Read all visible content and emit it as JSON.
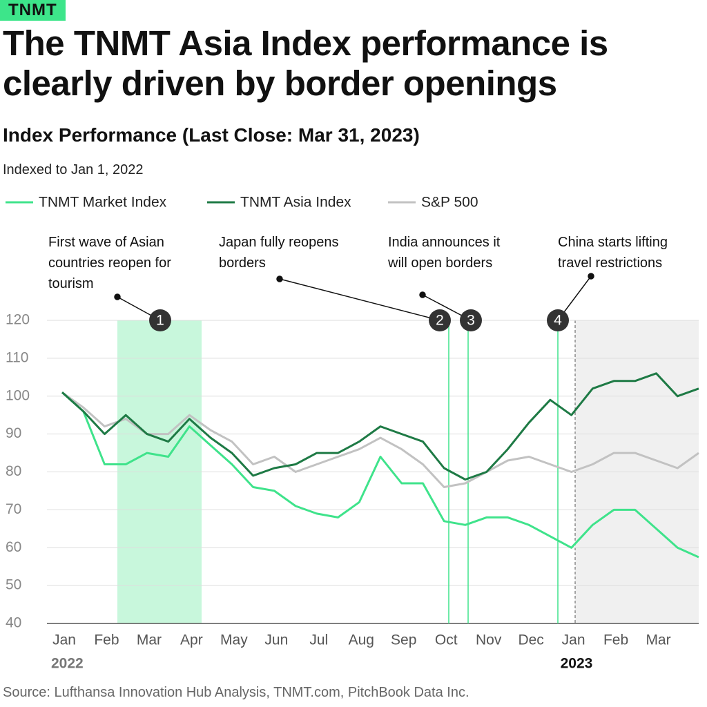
{
  "brand": "TNMT",
  "chart_data": {
    "type": "line",
    "title": "The TNMT Asia Index performance is clearly driven by border openings",
    "subtitle": "Index Performance (Last Close: Mar 31, 2023)",
    "y_label": "Indexed to Jan 1, 2022",
    "categories": [
      "Jan",
      null,
      "Feb",
      null,
      "Mar",
      null,
      "Apr",
      null,
      "May",
      null,
      "Jun",
      null,
      "Jul",
      null,
      "Aug",
      null,
      "Sep",
      null,
      "Oct",
      null,
      "Nov",
      null,
      "Dec",
      null,
      "Jan",
      null,
      "Feb",
      null,
      "Mar",
      null,
      null
    ],
    "year_labels": [
      "2022",
      "2023"
    ],
    "series": [
      {
        "name": "TNMT Market Index",
        "color": "#3fe38b",
        "values": [
          101,
          96,
          82,
          82,
          85,
          84,
          92,
          87,
          82,
          76,
          75,
          71,
          69,
          68,
          72,
          84,
          77,
          77,
          67,
          66,
          68,
          68,
          66,
          63,
          60,
          66,
          70,
          70,
          65,
          60,
          57.5
        ]
      },
      {
        "name": "TNMT Asia Index",
        "color": "#1e7a45",
        "values": [
          101,
          96,
          90,
          95,
          90,
          88,
          94,
          89,
          85,
          79,
          81,
          82,
          85,
          85,
          88,
          92,
          90,
          88,
          81,
          78,
          80,
          86,
          93,
          99,
          95,
          102,
          104,
          104,
          106,
          100,
          102
        ]
      },
      {
        "name": "S&P 500",
        "color": "#c2c2c2",
        "values": [
          101,
          97,
          92,
          94,
          90,
          90,
          95,
          91,
          88,
          82,
          84,
          80,
          82,
          84,
          86,
          89,
          86,
          82,
          76,
          77,
          80,
          83,
          84,
          82,
          80,
          82,
          85,
          85,
          83,
          81,
          85
        ]
      }
    ],
    "ylim": [
      40,
      120
    ],
    "yticks": [
      40,
      50,
      60,
      70,
      80,
      90,
      100,
      110,
      120
    ],
    "grid": true,
    "events": [
      {
        "marker": 1,
        "label": "First wave of Asian countries reopen for tourism"
      },
      {
        "marker": 2,
        "label": "Japan fully reopens borders"
      },
      {
        "marker": 3,
        "label": "India announces it will open borders"
      },
      {
        "marker": 4,
        "label": "China starts lifting travel restrictions"
      }
    ],
    "source": "Source: Lufthansa Innovation Hub Analysis, TNMT.com, PitchBook Data Inc."
  }
}
